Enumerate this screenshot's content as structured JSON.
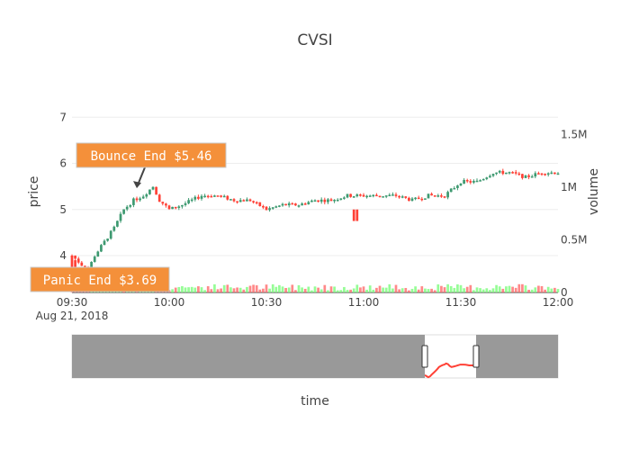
{
  "chart_data": {
    "type": "candlestick",
    "title": "CVSI",
    "xlabel": "time",
    "ylabel": "price",
    "y2label": "volume",
    "x_range": [
      "09:30",
      "12:00"
    ],
    "x_tick_labels": [
      "09:30",
      "10:00",
      "10:30",
      "11:00",
      "11:30",
      "12:00"
    ],
    "x_date_label": "Aug 21, 2018",
    "price_range": [
      3.2,
      7.2
    ],
    "price_tick_labels": [
      "4",
      "5",
      "6",
      "7"
    ],
    "price_ticks": [
      4,
      5,
      6,
      7
    ],
    "volume_range": [
      0,
      1750000
    ],
    "volume_tick_labels": [
      "0",
      "0.5M",
      "1M",
      "1.5M"
    ],
    "volume_ticks": [
      0,
      500000,
      1000000,
      1500000
    ],
    "increasing_color": "#3D9970",
    "decreasing_color": "#FF4136",
    "volume_up_color": "#7CFC7C",
    "volume_down_color": "#FF6B6B",
    "price_path": [
      [
        "09:30",
        4.0
      ],
      [
        "09:33",
        3.8
      ],
      [
        "09:35",
        3.7
      ],
      [
        "09:37",
        4.0
      ],
      [
        "09:40",
        4.3
      ],
      [
        "09:43",
        4.6
      ],
      [
        "09:46",
        5.0
      ],
      [
        "09:49",
        5.2
      ],
      [
        "09:52",
        5.3
      ],
      [
        "09:55",
        5.5
      ],
      [
        "09:57",
        5.2
      ],
      [
        "10:00",
        5.0
      ],
      [
        "10:04",
        5.1
      ],
      [
        "10:07",
        5.2
      ],
      [
        "10:10",
        5.3
      ],
      [
        "10:15",
        5.3
      ],
      [
        "10:20",
        5.2
      ],
      [
        "10:25",
        5.2
      ],
      [
        "10:30",
        5.0
      ],
      [
        "10:35",
        5.1
      ],
      [
        "10:40",
        5.1
      ],
      [
        "10:45",
        5.2
      ],
      [
        "10:50",
        5.2
      ],
      [
        "10:55",
        5.3
      ],
      [
        "11:00",
        5.3
      ],
      [
        "11:05",
        5.3
      ],
      [
        "11:10",
        5.3
      ],
      [
        "11:15",
        5.2
      ],
      [
        "11:20",
        5.3
      ],
      [
        "11:25",
        5.3
      ],
      [
        "11:30",
        5.6
      ],
      [
        "11:35",
        5.6
      ],
      [
        "11:40",
        5.8
      ],
      [
        "11:45",
        5.8
      ],
      [
        "11:50",
        5.7
      ],
      [
        "11:55",
        5.8
      ],
      [
        "12:00",
        5.8
      ]
    ],
    "range_slider_window": [
      "09:30",
      "12:00"
    ]
  },
  "annotations": [
    {
      "label": "Bounce End $5.46",
      "time": "09:50",
      "price": 5.46
    },
    {
      "label": "Panic End $3.69",
      "time": "09:35",
      "price": 3.69
    }
  ],
  "colors": {
    "annotation_bg": "#F4903A",
    "annotation_border": "#C7C7C7",
    "grid": "#EEEEEE",
    "slider_mask": "#999999"
  }
}
